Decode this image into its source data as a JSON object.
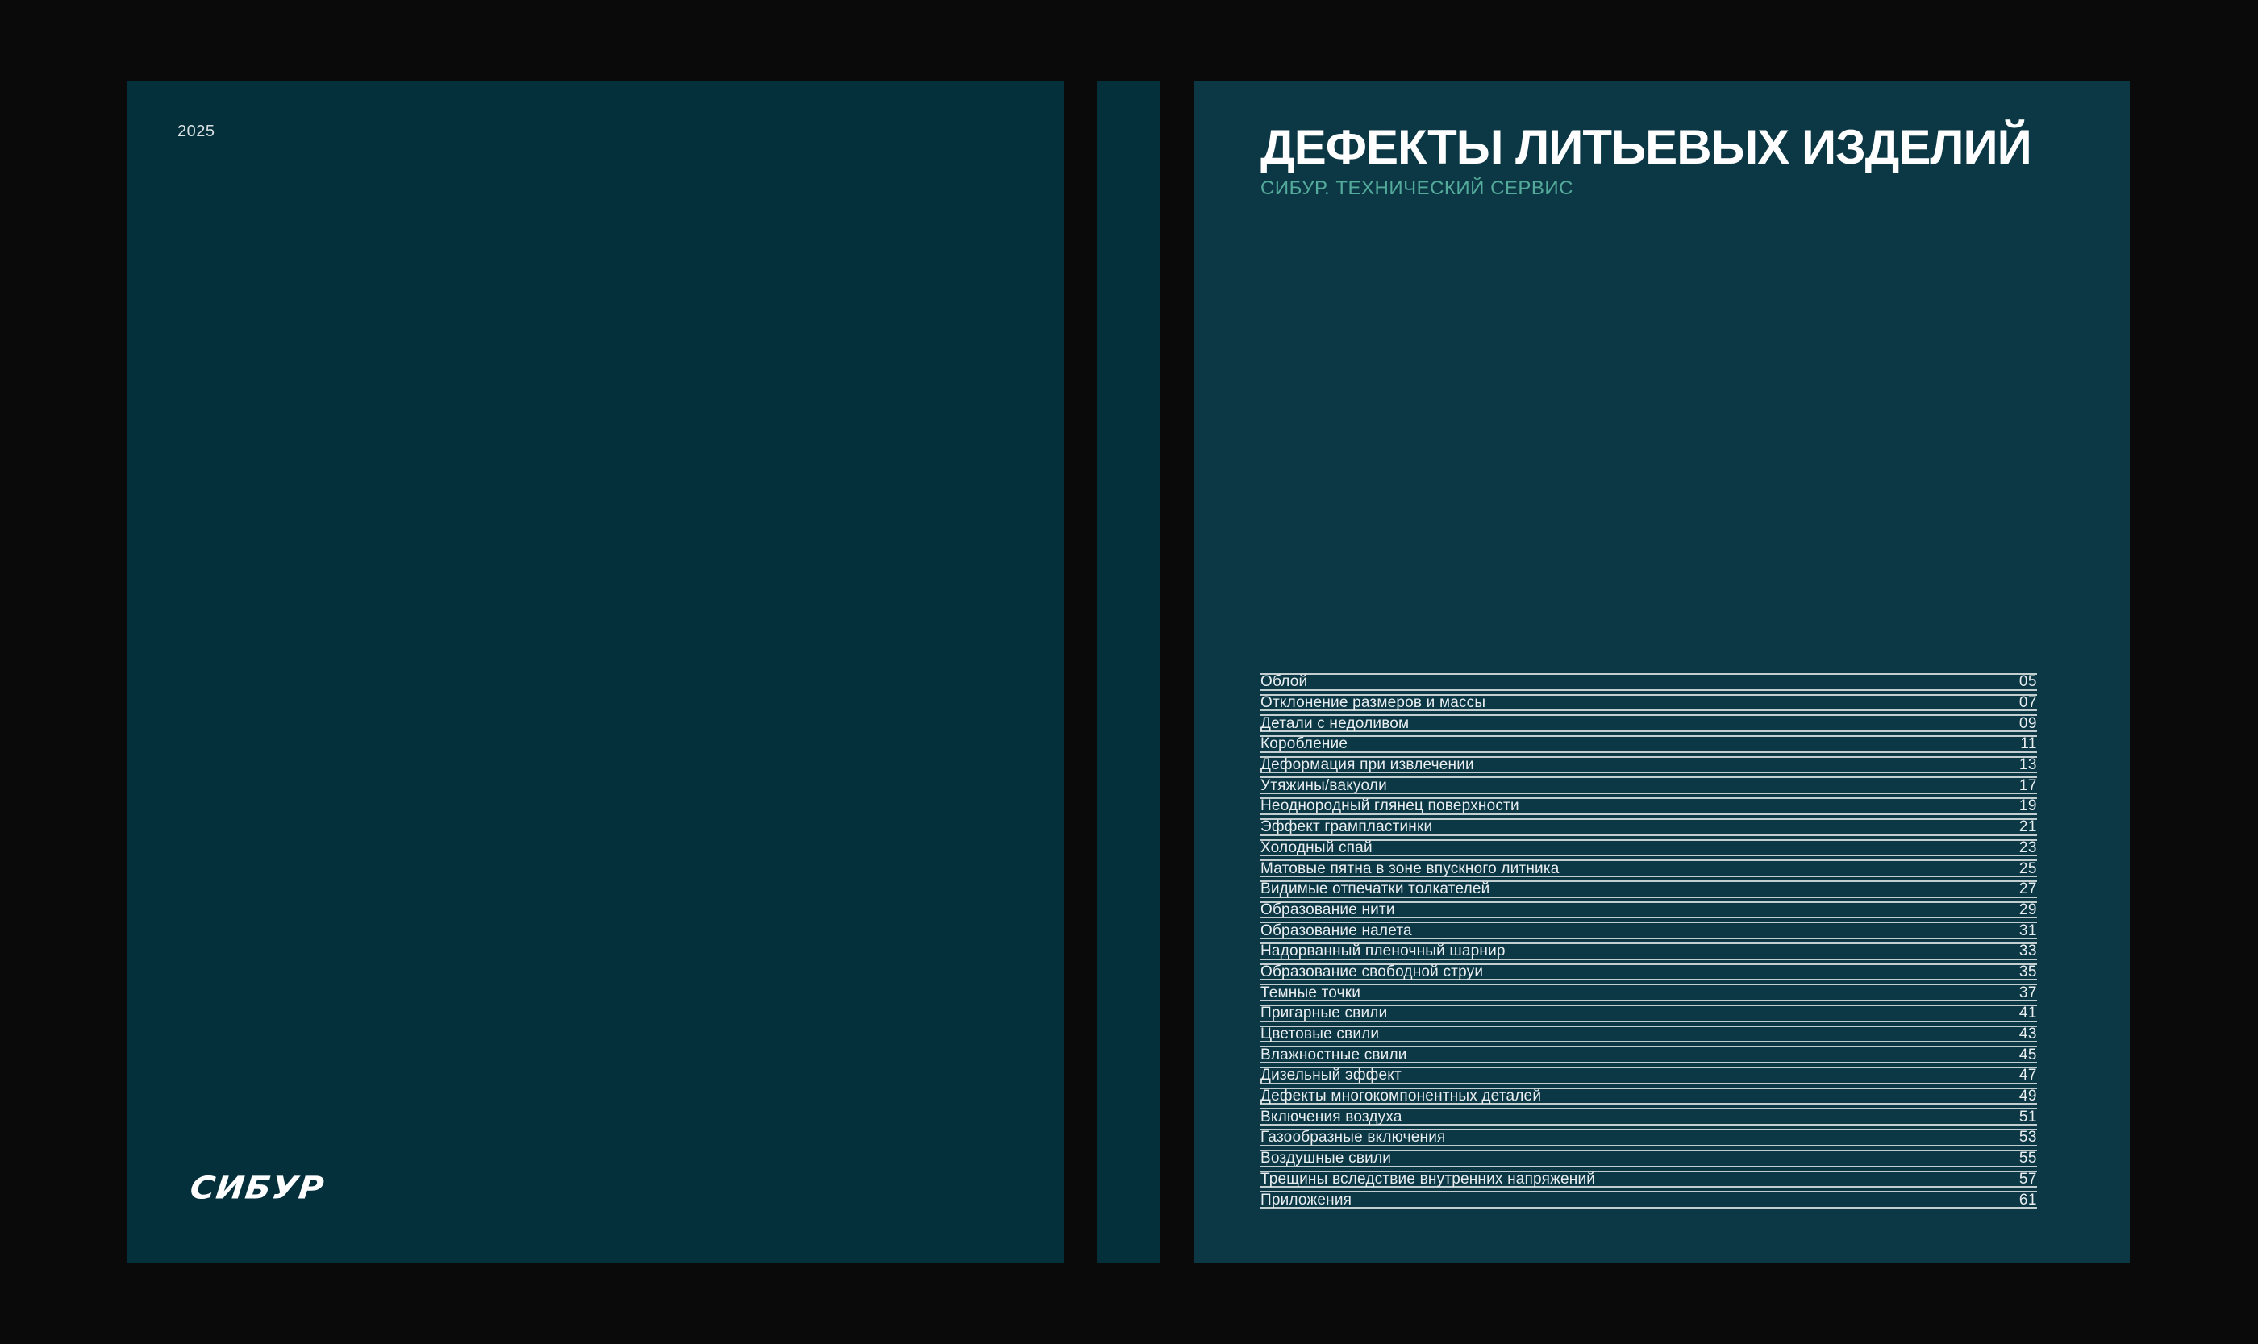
{
  "cover": {
    "year": "2025",
    "logo": "СИБУР"
  },
  "toc_page": {
    "title": "ДЕФЕКТЫ ЛИТЬЕВЫХ ИЗДЕЛИЙ",
    "subtitle": "СИБУР. ТЕХНИЧЕСКИЙ СЕРВИС",
    "toc": [
      {
        "label": "Облой",
        "page": "05"
      },
      {
        "label": "Отклонение размеров и массы",
        "page": "07"
      },
      {
        "label": "Детали с недоливом",
        "page": "09"
      },
      {
        "label": "Коробление",
        "page": "11"
      },
      {
        "label": "Деформация при извлечении",
        "page": "13"
      },
      {
        "label": "Утяжины/вакуоли",
        "page": "17"
      },
      {
        "label": "Неоднородный глянец поверхности",
        "page": "19"
      },
      {
        "label": "Эффект грампластинки",
        "page": "21"
      },
      {
        "label": "Холодный спай",
        "page": "23"
      },
      {
        "label": "Матовые пятна в зоне впускного литника",
        "page": "25"
      },
      {
        "label": "Видимые отпечатки толкателей",
        "page": "27"
      },
      {
        "label": "Образование нити",
        "page": "29"
      },
      {
        "label": "Образование налета",
        "page": "31"
      },
      {
        "label": "Надорванный пленочный шарнир",
        "page": "33"
      },
      {
        "label": "Образование свободной струи",
        "page": "35"
      },
      {
        "label": "Темные точки",
        "page": "37"
      },
      {
        "label": "Пригарные свили",
        "page": "41"
      },
      {
        "label": "Цветовые свили",
        "page": "43"
      },
      {
        "label": "Влажностные свили",
        "page": "45"
      },
      {
        "label": "Дизельный эффект",
        "page": "47"
      },
      {
        "label": "Дефекты многокомпонентных деталей",
        "page": "49"
      },
      {
        "label": "Включения воздуха",
        "page": "51"
      },
      {
        "label": "Газообразные включения",
        "page": "53"
      },
      {
        "label": "Воздушные свили",
        "page": "55"
      },
      {
        "label": "Трещины вследствие внутренних напряжений",
        "page": "57"
      },
      {
        "label": "Приложения",
        "page": "61"
      }
    ]
  },
  "colors": {
    "background": "#0A0A0A",
    "page_left": "#04303C",
    "spine": "#04303C",
    "page_right": "#0C3846",
    "accent_teal": "#54AB9B",
    "text_light": "#E9EEF0",
    "rule": "#C3CED1"
  }
}
